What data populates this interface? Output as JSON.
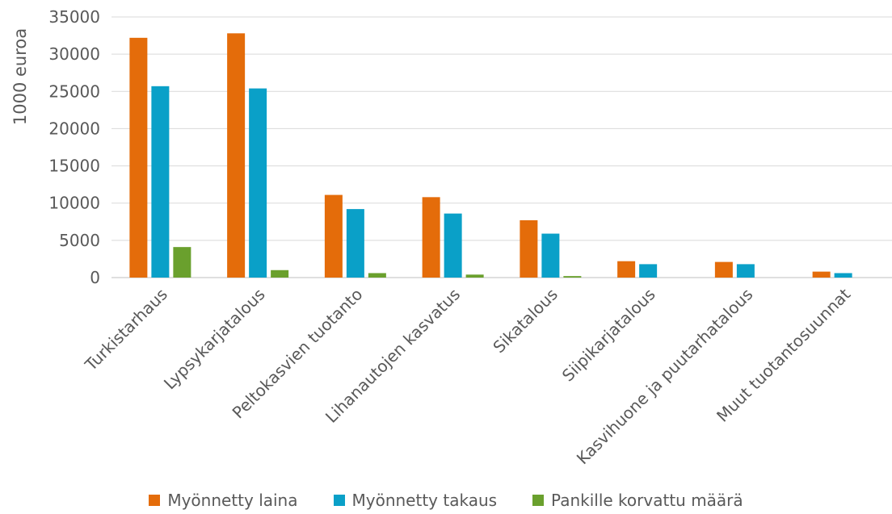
{
  "chart_data": {
    "type": "bar",
    "ylabel": "1000 euroa",
    "xlabel": "",
    "ylim": [
      0,
      35000
    ],
    "yticks": [
      0,
      5000,
      10000,
      15000,
      20000,
      25000,
      30000,
      35000
    ],
    "grid": true,
    "legend_position": "bottom",
    "categories": [
      "Turkistarhaus",
      "Lypsykarjatalous",
      "Peltokasvien tuotanto",
      "Lihanautojen kasvatus",
      "Sikatalous",
      "Siipikarjatalous",
      "Kasvihuone ja puutarhatalous",
      "Muut tuotantosuunnat"
    ],
    "series": [
      {
        "name": "Myönnetty laina",
        "color": "#e46c0a",
        "values": [
          32200,
          32800,
          11100,
          10800,
          7700,
          2200,
          2100,
          800
        ]
      },
      {
        "name": "Myönnetty takaus",
        "color": "#0aa0c8",
        "values": [
          25700,
          25400,
          9200,
          8600,
          5900,
          1800,
          1800,
          600
        ]
      },
      {
        "name": "Pankille korvattu määrä",
        "color": "#6aa02d",
        "values": [
          4100,
          1000,
          600,
          400,
          200,
          0,
          0,
          0
        ]
      }
    ]
  }
}
